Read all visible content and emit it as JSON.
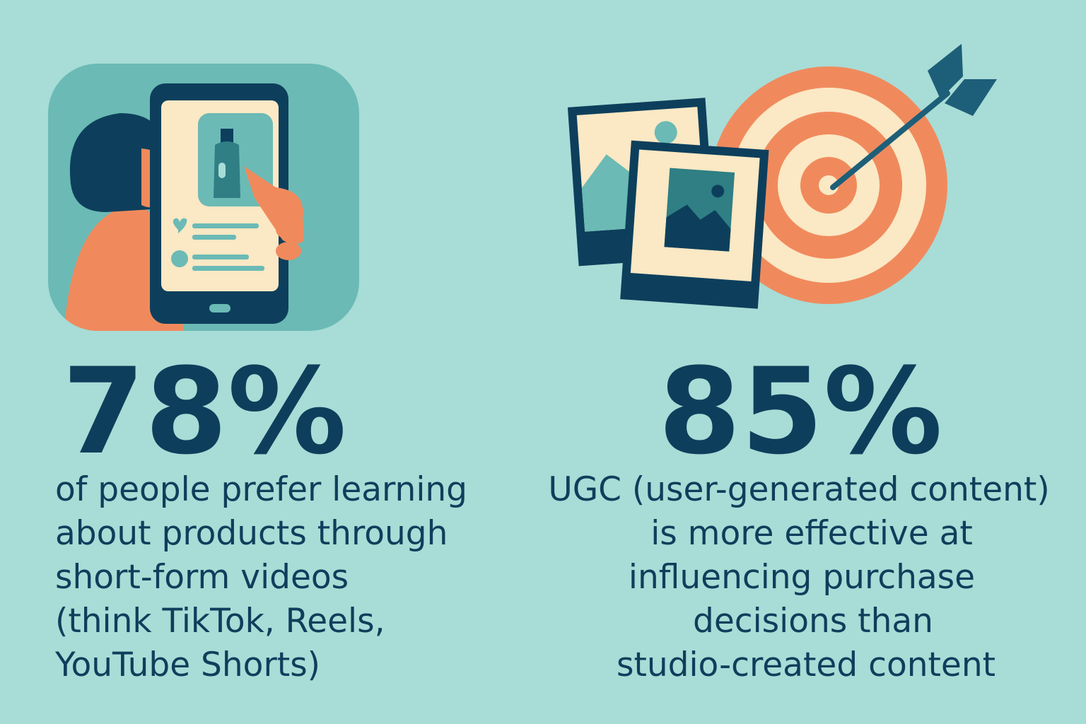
{
  "stats": [
    {
      "value": "78%",
      "lines": [
        "of people prefer learning",
        "about products through",
        "short-form videos",
        "(think TikTok, Reels,",
        "YouTube Shorts)"
      ]
    },
    {
      "value": "85%",
      "lines": [
        "UGC (user-generated content)",
        "is more effective at",
        "influencing purchase",
        "decisions than",
        "studio-created content"
      ]
    }
  ]
}
